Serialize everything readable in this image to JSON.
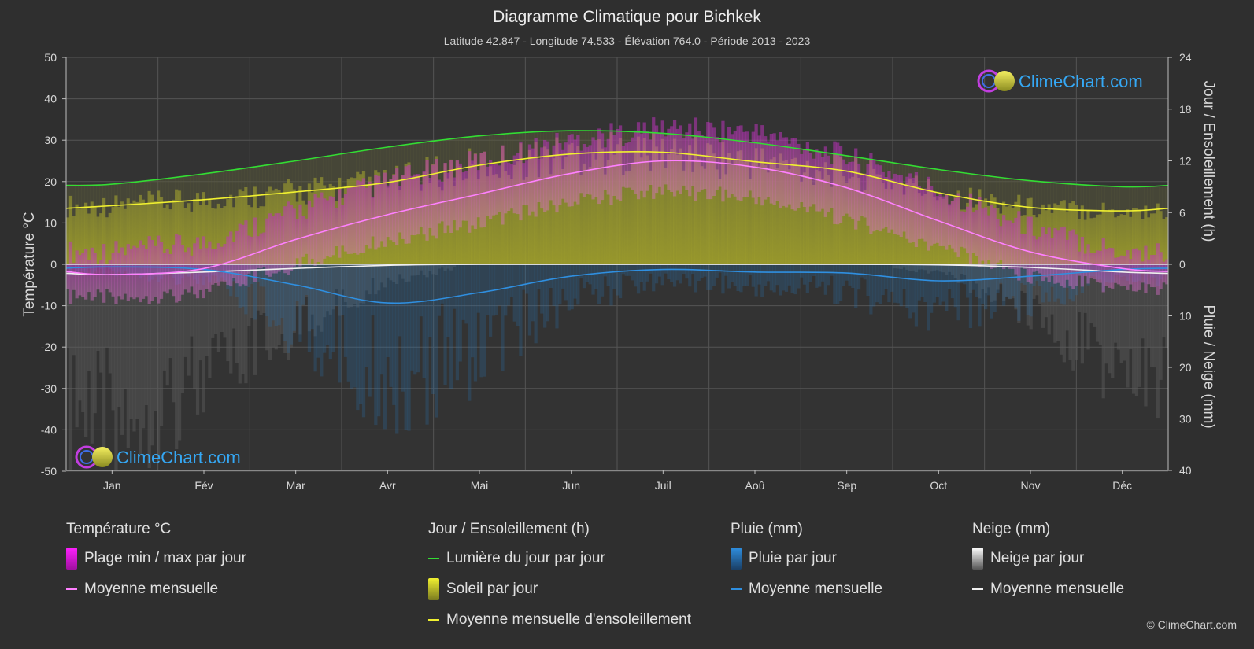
{
  "header": {
    "title": "Diagramme Climatique pour Bichkek",
    "subtitle": "Latitude 42.847 - Longitude 74.533 - Élévation 764.0 - Période 2013 - 2023"
  },
  "logo_text": "ClimeChart.com",
  "copyright": "© ClimeChart.com",
  "legend": {
    "temperature": {
      "title": "Température °C",
      "range_label": "Plage min / max par jour",
      "mean_label": "Moyenne mensuelle"
    },
    "sun": {
      "title": "Jour / Ensoleillement (h)",
      "daylight_label": "Lumière du jour par jour",
      "sunshine_label": "Soleil par jour",
      "mean_label": "Moyenne mensuelle d'ensoleillement"
    },
    "rain": {
      "title": "Pluie (mm)",
      "daily_label": "Pluie par jour",
      "mean_label": "Moyenne mensuelle"
    },
    "snow": {
      "title": "Neige (mm)",
      "daily_label": "Neige par jour",
      "mean_label": "Moyenne mensuelle"
    }
  },
  "colors": {
    "background": "#2f2f2f",
    "temp_range": "#e020e0",
    "temp_mean": "#ff80ff",
    "daylight": "#33dd33",
    "sunshine_fill": "#bcbc2a",
    "sunshine_mean": "#f0f030",
    "rain_bar": "#2a6ea8",
    "rain_mean": "#2f8fe0",
    "snow_bar": "#8a8a8a",
    "snow_mean": "#f0f0f0",
    "logo_text": "#35a8f5"
  },
  "chart_data": {
    "type": "line",
    "months": [
      "Jan",
      "Fév",
      "Mar",
      "Avr",
      "Mai",
      "Jun",
      "Juil",
      "Aoû",
      "Sep",
      "Oct",
      "Nov",
      "Déc"
    ],
    "axes": {
      "y_left": {
        "label": "Température °C",
        "min": -50,
        "max": 50,
        "ticks": [
          50,
          40,
          30,
          20,
          10,
          0,
          -10,
          -20,
          -30,
          -40,
          -50
        ]
      },
      "y_right_top": {
        "label": "Jour / Ensoleillement (h)",
        "min": 0,
        "max": 24,
        "ticks": [
          24,
          18,
          12,
          6,
          0
        ]
      },
      "y_right_bottom": {
        "label": "Pluie / Neige (mm)",
        "min": 0,
        "max": 40,
        "ticks": [
          0,
          10,
          20,
          30,
          40
        ],
        "inverted": true
      }
    },
    "grid": true,
    "series": {
      "temp_mean_c": [
        -2.5,
        -1.0,
        6.0,
        12.0,
        17.0,
        22.0,
        25.0,
        23.5,
        18.5,
        10.5,
        3.0,
        -1.0
      ],
      "temp_max_c": [
        3,
        5,
        13,
        20,
        25,
        30,
        33,
        32,
        26,
        18,
        9,
        3
      ],
      "temp_min_c": [
        -8,
        -7,
        0,
        6,
        10,
        15,
        18,
        16,
        11,
        4,
        -3,
        -6
      ],
      "daylight_h": [
        9.3,
        10.5,
        12.0,
        13.6,
        14.9,
        15.5,
        15.2,
        14.1,
        12.6,
        11.0,
        9.7,
        9.0
      ],
      "sunshine_mean_h": [
        6.8,
        7.5,
        8.4,
        9.5,
        11.5,
        12.8,
        13.0,
        11.9,
        10.8,
        8.3,
        6.6,
        6.2
      ],
      "rain_mean_mm": [
        0.5,
        1.0,
        4.0,
        7.5,
        5.5,
        2.3,
        1.0,
        1.5,
        1.7,
        3.2,
        2.3,
        1.0
      ],
      "snow_mean_mm": [
        2.0,
        1.5,
        0.8,
        0.2,
        0.0,
        0.0,
        0.0,
        0.0,
        0.0,
        0.1,
        0.6,
        1.5
      ]
    }
  }
}
